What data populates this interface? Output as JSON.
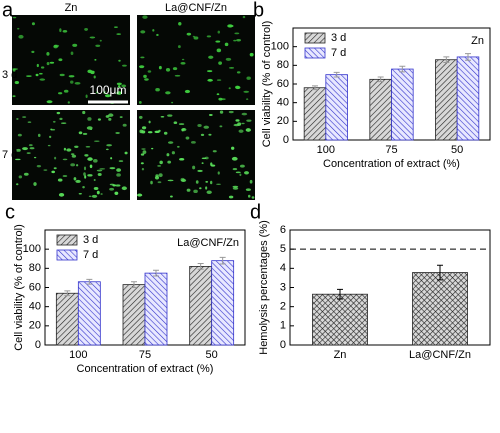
{
  "panel_a": {
    "panel": "a",
    "columns": [
      "Zn",
      "La@CNF/Zn"
    ],
    "rows": [
      "3 d",
      "7 d"
    ],
    "scale_bar": "100μm"
  },
  "chart_data": [
    {
      "type": "bar",
      "panel": "b",
      "annotation": "Zn",
      "categories": [
        "100",
        "75",
        "50"
      ],
      "series": [
        {
          "name": "3 d",
          "color": "#222222",
          "values": [
            56,
            65,
            86
          ],
          "errors": [
            2,
            2.5,
            3
          ]
        },
        {
          "name": "7 d",
          "color": "#3333cc",
          "values": [
            70,
            76,
            89
          ],
          "errors": [
            2.5,
            3,
            3.5
          ]
        }
      ],
      "xlabel": "Concentration of extract (%)",
      "ylabel": "Cell viability (% of control)",
      "ylim": [
        0,
        120
      ],
      "yticks": [
        0,
        20,
        40,
        60,
        80,
        100
      ],
      "legend": "upper left"
    },
    {
      "type": "bar",
      "panel": "c",
      "annotation": "La@CNF/Zn",
      "categories": [
        "100",
        "75",
        "50"
      ],
      "series": [
        {
          "name": "3 d",
          "color": "#222222",
          "values": [
            54,
            63,
            82
          ],
          "errors": [
            2.5,
            3,
            3
          ]
        },
        {
          "name": "7 d",
          "color": "#3333cc",
          "values": [
            66,
            75,
            88
          ],
          "errors": [
            2.5,
            3,
            3.5
          ]
        }
      ],
      "xlabel": "Concentration of extract (%)",
      "ylabel": "Cell viability (% of control)",
      "ylim": [
        0,
        120
      ],
      "yticks": [
        0,
        20,
        40,
        60,
        80,
        100
      ],
      "legend": "upper left"
    },
    {
      "type": "bar",
      "panel": "d",
      "categories": [
        "Zn",
        "La@CNF/Zn"
      ],
      "series": [
        {
          "color": "#222222",
          "values": [
            2.65,
            3.78
          ],
          "errors": [
            0.25,
            0.38
          ]
        }
      ],
      "ylabel": "Hemolysis percentages (%)",
      "reference_line": 5,
      "ylim": [
        0,
        6
      ],
      "yticks": [
        0,
        1,
        2,
        3,
        4,
        5,
        6
      ]
    }
  ]
}
